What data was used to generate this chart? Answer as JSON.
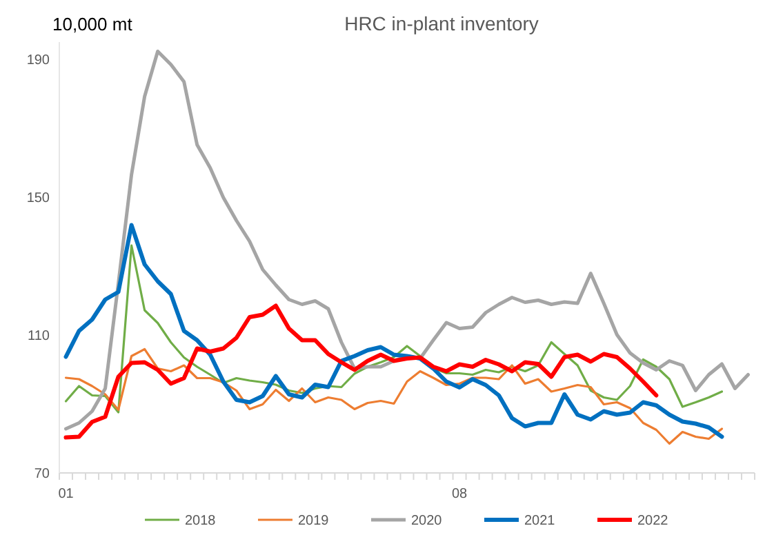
{
  "chart_data": {
    "type": "line",
    "title": "HRC in-plant inventory",
    "ylabel": "10,000 mt",
    "categories": [
      "01",
      null,
      null,
      null,
      null,
      null,
      null,
      null,
      null,
      null,
      null,
      null,
      null,
      null,
      null,
      null,
      null,
      null,
      null,
      null,
      null,
      null,
      null,
      null,
      null,
      null,
      null,
      null,
      null,
      null,
      "08",
      null,
      null,
      null,
      null,
      null,
      null,
      null,
      null,
      null,
      null,
      null,
      null,
      null,
      null,
      null,
      null,
      null,
      null,
      null,
      null,
      null,
      null
    ],
    "ylim": [
      70,
      195
    ],
    "yticks": [
      70,
      110,
      150,
      190
    ],
    "grid": false,
    "legend": "bottom",
    "marker": "none",
    "line_style": "solid",
    "series": [
      {
        "name": "2018",
        "color": "#70ad47",
        "values": [
          90.8,
          95.2,
          92.5,
          92.3,
          87.6,
          136,
          117.2,
          113.5,
          107.9,
          103.5,
          100.8,
          98.5,
          96.1,
          97.5,
          96.8,
          96.3,
          95.6,
          93.9,
          93.2,
          94.5,
          95.2,
          94.9,
          98.8,
          100.8,
          102.1,
          103.6,
          106.8,
          103.9,
          100.5,
          98.9,
          98.9,
          98.5,
          99.9,
          99.2,
          100.8,
          99.5,
          101.2,
          107.9,
          104.5,
          101.2,
          93.9,
          91.9,
          91.2,
          95.2,
          102.9,
          100.8,
          97.2,
          89.2,
          90.5,
          91.9,
          93.6,
          null,
          null
        ]
      },
      {
        "name": "2019",
        "color": "#ed7d31",
        "values": [
          97.6,
          97.2,
          95.2,
          92.8,
          88.3,
          103.9,
          105.9,
          100.3,
          99.5,
          101.2,
          97.5,
          97.5,
          96.3,
          93.9,
          88.5,
          89.9,
          94.1,
          90.9,
          94.5,
          90.5,
          91.9,
          91.2,
          88.5,
          90.3,
          90.9,
          90.1,
          96.5,
          99.5,
          97.6,
          95.5,
          95.9,
          97.6,
          97.6,
          97.2,
          101.2,
          95.9,
          97.2,
          93.6,
          94.5,
          95.5,
          94.9,
          89.9,
          90.5,
          88.8,
          84.5,
          82.5,
          78.5,
          81.9,
          80.5,
          79.9,
          82.8,
          null,
          null
        ]
      },
      {
        "name": "2020",
        "color": "#a5a5a5",
        "values": [
          82.8,
          84.5,
          87.9,
          94.5,
          125,
          156.5,
          179.2,
          192.3,
          188.5,
          183.5,
          165.2,
          158.5,
          149.9,
          143.2,
          137.2,
          129,
          124.5,
          120.3,
          118.9,
          119.9,
          117.6,
          107.9,
          100.3,
          100.8,
          100.8,
          102.5,
          103.9,
          103.2,
          108.5,
          113.6,
          111.9,
          112.3,
          116.5,
          118.9,
          120.9,
          119.5,
          120.1,
          118.9,
          119.6,
          119.2,
          127.9,
          119.2,
          110.1,
          104.8,
          101.9,
          99.9,
          102.5,
          101.2,
          93.9,
          98.5,
          101.6,
          94.5,
          98.5
        ]
      },
      {
        "name": "2021",
        "color": "#0070c0",
        "values": [
          103.7,
          111.2,
          114.5,
          120.3,
          122.5,
          141.9,
          130.5,
          125.6,
          121.9,
          111.2,
          108.5,
          104.3,
          96.5,
          91.2,
          90.5,
          92.3,
          98.1,
          92.8,
          91.9,
          95.6,
          94.9,
          102.5,
          103.9,
          105.6,
          106.5,
          104.3,
          103.9,
          103.2,
          100.3,
          96.5,
          94.8,
          97.2,
          95.5,
          92.5,
          85.9,
          83.5,
          84.5,
          84.5,
          92.8,
          86.9,
          85.5,
          87.9,
          86.9,
          87.5,
          90.5,
          89.6,
          86.9,
          84.9,
          84.3,
          83.2,
          80.5,
          null,
          null
        ]
      },
      {
        "name": "2022",
        "color": "#ff0000",
        "values": [
          80.3,
          80.5,
          84.8,
          86.3,
          97.9,
          101.9,
          102.1,
          99.9,
          95.9,
          97.5,
          106.1,
          105.2,
          106.1,
          109.2,
          115.2,
          115.9,
          118.5,
          111.9,
          108.5,
          108.5,
          104.5,
          102.1,
          99.9,
          102.5,
          104.3,
          102.5,
          103.2,
          103.5,
          100.8,
          99.5,
          101.5,
          100.8,
          102.8,
          101.5,
          99.5,
          102.1,
          101.6,
          97.9,
          103.6,
          104.3,
          102.3,
          104.5,
          103.6,
          100.3,
          96.5,
          92.5,
          null,
          null,
          null,
          null,
          null,
          null,
          null
        ]
      }
    ]
  }
}
